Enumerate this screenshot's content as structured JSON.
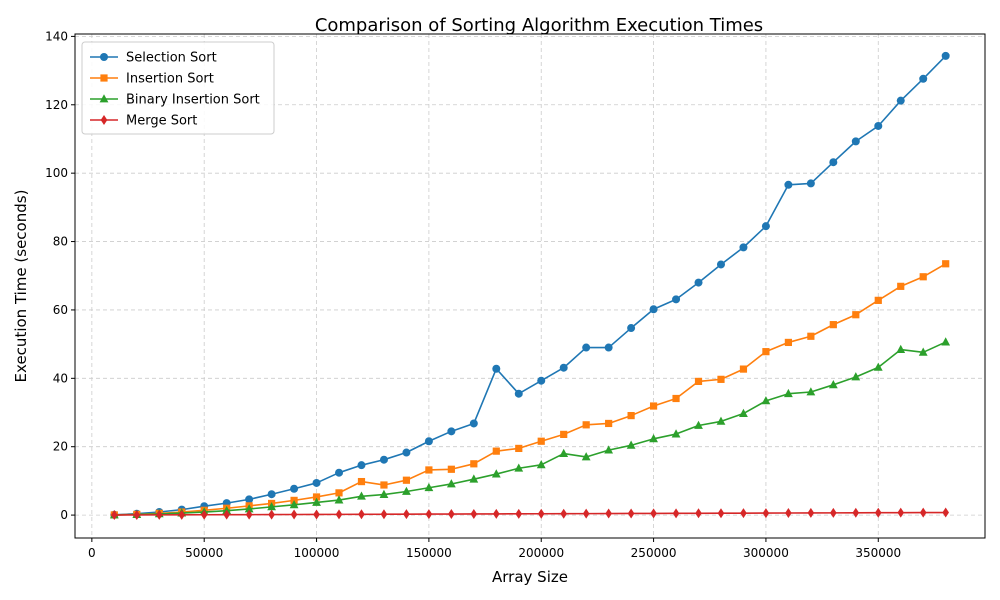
{
  "chart_data": {
    "type": "line",
    "title": "Comparison of Sorting Algorithm Execution Times",
    "xlabel": "Array Size",
    "ylabel": "Execution Time (seconds)",
    "xlim": [
      -7500,
      397500
    ],
    "ylim": [
      -6.7,
      140.7
    ],
    "xticks": [
      0,
      50000,
      100000,
      150000,
      200000,
      250000,
      300000,
      350000
    ],
    "yticks": [
      0,
      20,
      40,
      60,
      80,
      100,
      120,
      140
    ],
    "grid": true,
    "legend_position": "top-left",
    "x": [
      10000,
      20000,
      30000,
      40000,
      50000,
      60000,
      70000,
      80000,
      90000,
      100000,
      110000,
      120000,
      130000,
      140000,
      150000,
      160000,
      170000,
      180000,
      190000,
      200000,
      210000,
      220000,
      230000,
      240000,
      250000,
      260000,
      270000,
      280000,
      290000,
      300000,
      310000,
      320000,
      330000,
      340000,
      350000,
      360000,
      370000,
      380000
    ],
    "series": [
      {
        "name": "Selection Sort",
        "color": "#1f77b4",
        "marker": "circle",
        "values": [
          0.1,
          0.4,
          0.9,
          1.6,
          2.6,
          3.5,
          4.6,
          6.1,
          7.7,
          9.4,
          12.4,
          14.6,
          16.2,
          18.3,
          21.6,
          24.5,
          26.8,
          42.8,
          35.5,
          39.3,
          43.1,
          49.0,
          49.0,
          54.7,
          60.2,
          63.1,
          68.0,
          73.3,
          78.3,
          84.5,
          96.6,
          97.0,
          103.2,
          109.3,
          113.8,
          121.2,
          127.6,
          134.3
        ]
      },
      {
        "name": "Insertion Sort",
        "color": "#ff7f0e",
        "marker": "square",
        "values": [
          0.05,
          0.2,
          0.5,
          0.9,
          1.4,
          2.0,
          2.7,
          3.4,
          4.3,
          5.3,
          6.5,
          9.8,
          8.8,
          10.2,
          13.2,
          13.4,
          15.0,
          18.7,
          19.5,
          21.6,
          23.6,
          26.4,
          26.8,
          29.1,
          31.9,
          34.1,
          39.1,
          39.7,
          42.7,
          47.8,
          50.5,
          52.3,
          55.7,
          58.6,
          62.8,
          66.9,
          69.7,
          73.5
        ]
      },
      {
        "name": "Binary Insertion Sort",
        "color": "#2ca02c",
        "marker": "triangle",
        "values": [
          0.03,
          0.15,
          0.35,
          0.6,
          0.9,
          1.3,
          1.8,
          2.4,
          3.0,
          3.7,
          4.4,
          5.5,
          6.0,
          6.9,
          8.0,
          9.1,
          10.5,
          12.0,
          13.7,
          14.7,
          18.0,
          17.0,
          19.0,
          20.4,
          22.3,
          23.7,
          26.2,
          27.4,
          29.7,
          33.4,
          35.5,
          36.0,
          38.1,
          40.4,
          43.2,
          48.4,
          47.6,
          50.6
        ]
      },
      {
        "name": "Merge Sort",
        "color": "#d62728",
        "marker": "diamond",
        "values": [
          0.02,
          0.04,
          0.06,
          0.08,
          0.1,
          0.12,
          0.13,
          0.15,
          0.17,
          0.19,
          0.21,
          0.23,
          0.25,
          0.27,
          0.29,
          0.31,
          0.33,
          0.35,
          0.37,
          0.39,
          0.41,
          0.43,
          0.45,
          0.47,
          0.49,
          0.51,
          0.53,
          0.55,
          0.57,
          0.59,
          0.61,
          0.63,
          0.65,
          0.67,
          0.69,
          0.71,
          0.73,
          0.75
        ]
      }
    ]
  }
}
